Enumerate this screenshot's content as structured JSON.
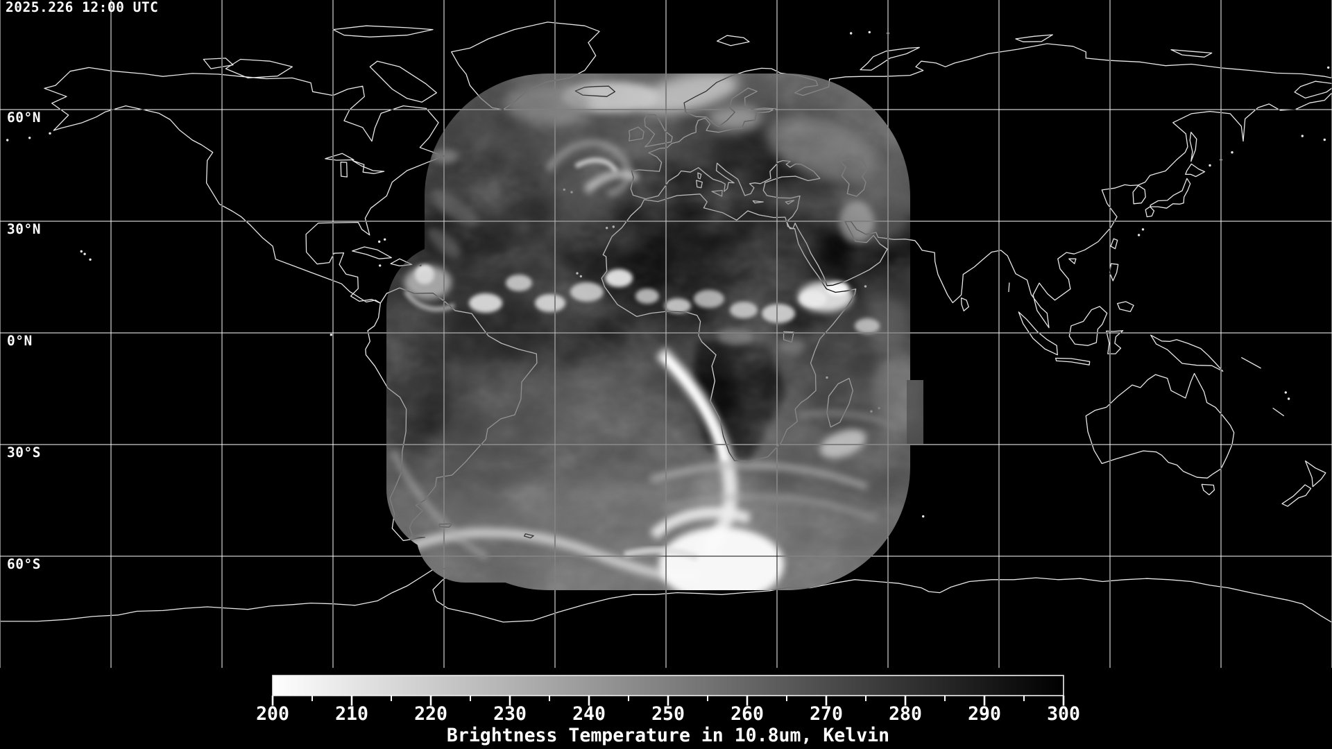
{
  "product": {
    "timestamp": "2025.226 12:00 UTC",
    "kind": "satellite infrared brightness temperature image"
  },
  "map": {
    "background_color": "#000000",
    "grid_color": "#ffffff",
    "coastline_color": "#e8e8e8",
    "longitude_grid_step_deg": 30,
    "latitude_labels": [
      {
        "label": "60°N",
        "lat": 60
      },
      {
        "label": "30°N",
        "lat": 30
      },
      {
        "label": "0°N",
        "lat": 0
      },
      {
        "label": "30°S",
        "lat": -30
      },
      {
        "label": "60°S",
        "lat": -60
      }
    ]
  },
  "colorbar": {
    "title": "Brightness Temperature in 10.8um, Kelvin",
    "unit": "Kelvin",
    "min": 200,
    "max": 300,
    "major_ticks": [
      200,
      210,
      220,
      230,
      240,
      250,
      260,
      270,
      280,
      290,
      300
    ],
    "minor_tick_step": 5,
    "min_color": "#ffffff",
    "max_color": "#000000"
  }
}
